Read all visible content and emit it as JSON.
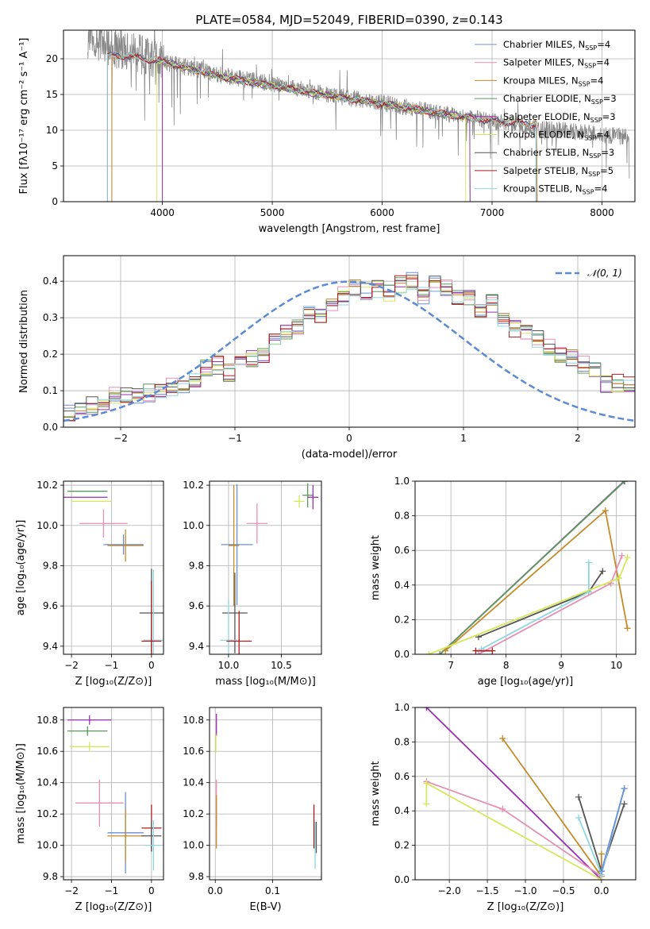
{
  "figure": {
    "title": "PLATE=0584, MJD=52049, FIBERID=0390, z=0.143"
  },
  "colors": {
    "chabrier_miles": "#6a8fd8",
    "salpeter_miles": "#e58fb4",
    "kroupa_miles": "#c58a2a",
    "chabrier_elodie": "#5a9a5a",
    "salpeter_elodie": "#9a2fb0",
    "kroupa_elodie": "#d4e85a",
    "chabrier_stelib": "#555555",
    "salpeter_stelib": "#b01c1c",
    "kroupa_stelib": "#8fd6e0",
    "data": "#888888",
    "normal": "#5b8bd6"
  },
  "chart_data": [
    {
      "id": "spectrum",
      "type": "line",
      "xlabel": "wavelength [Angstrom, rest frame]",
      "ylabel": "Flux [fλ10⁻¹⁷ erg cm⁻² s⁻¹ A⁻¹]",
      "xlim": [
        3100,
        8300
      ],
      "ylim": [
        0,
        24
      ],
      "xticks": [
        4000,
        5000,
        6000,
        7000,
        8000
      ],
      "yticks": [
        0,
        5,
        10,
        15,
        20
      ],
      "legend_position": "top-right",
      "legend": [
        {
          "key": "chabrier_miles",
          "label": "Chabrier MILES, N",
          "sub": "SSP",
          "suffix": "=4"
        },
        {
          "key": "salpeter_miles",
          "label": "Salpeter MILES, N",
          "sub": "SSP",
          "suffix": "=4"
        },
        {
          "key": "kroupa_miles",
          "label": "Kroupa MILES, N",
          "sub": "SSP",
          "suffix": "=4"
        },
        {
          "key": "chabrier_elodie",
          "label": "Chabrier ELODIE, N",
          "sub": "SSP",
          "suffix": "=3"
        },
        {
          "key": "salpeter_elodie",
          "label": "Salpeter ELODIE, N",
          "sub": "SSP",
          "suffix": "=3"
        },
        {
          "key": "kroupa_elodie",
          "label": "Kroupa ELODIE, N",
          "sub": "SSP",
          "suffix": "=4"
        },
        {
          "key": "chabrier_stelib",
          "label": "Chabrier STELIB, N",
          "sub": "SSP",
          "suffix": "=3"
        },
        {
          "key": "salpeter_stelib",
          "label": "Salpeter STELIB, N",
          "sub": "SSP",
          "suffix": "=5"
        },
        {
          "key": "kroupa_stelib",
          "label": "Kroupa STELIB, N",
          "sub": "SSP",
          "suffix": "=4"
        }
      ],
      "data_trend": [
        [
          3300,
          23.5
        ],
        [
          3500,
          22
        ],
        [
          3700,
          21
        ],
        [
          4000,
          19.6
        ],
        [
          4500,
          17.8
        ],
        [
          5000,
          16.5
        ],
        [
          5500,
          15
        ],
        [
          6000,
          13.8
        ],
        [
          6500,
          12.5
        ],
        [
          7000,
          11.2
        ],
        [
          7500,
          10.2
        ],
        [
          8000,
          9.4
        ],
        [
          8250,
          9.0
        ]
      ],
      "model_trend": [
        [
          3500,
          20.5
        ],
        [
          3700,
          20.3
        ],
        [
          4000,
          19.6
        ],
        [
          4500,
          17.6
        ],
        [
          5000,
          16.2
        ],
        [
          5500,
          14.9
        ],
        [
          6000,
          13.7
        ],
        [
          6500,
          12.4
        ],
        [
          7000,
          11.3
        ],
        [
          7400,
          10.8
        ]
      ],
      "model_ranges": {
        "chabrier_miles": [
          3540,
          7410
        ],
        "salpeter_miles": [
          3540,
          7410
        ],
        "kroupa_miles": [
          3540,
          7410
        ],
        "chabrier_elodie": [
          4000,
          6800
        ],
        "salpeter_elodie": [
          4000,
          6800
        ],
        "kroupa_elodie": [
          3950,
          6760
        ],
        "chabrier_stelib": [
          3500,
          7400
        ],
        "salpeter_stelib": [
          3500,
          7400
        ],
        "kroupa_stelib": [
          3500,
          7400
        ]
      }
    },
    {
      "id": "residuals",
      "type": "line",
      "xlabel": "(data-model)/error",
      "ylabel": "Normed distribution",
      "xlim": [
        -2.5,
        2.5
      ],
      "ylim": [
        0,
        0.47
      ],
      "xticks": [
        -2,
        -1,
        0,
        1,
        2
      ],
      "yticks": [
        0.0,
        0.1,
        0.2,
        0.3,
        0.4
      ],
      "legend_position": "top-right",
      "legend_label": "𝒩(0, 1)",
      "hist_x_start": -2.5,
      "hist_bin_width": 0.1,
      "hist_base": [
        0.042,
        0.042,
        0.06,
        0.072,
        0.085,
        0.086,
        0.09,
        0.094,
        0.1,
        0.11,
        0.118,
        0.13,
        0.16,
        0.17,
        0.15,
        0.17,
        0.19,
        0.2,
        0.25,
        0.26,
        0.27,
        0.32,
        0.3,
        0.33,
        0.36,
        0.38,
        0.37,
        0.38,
        0.37,
        0.39,
        0.4,
        0.36,
        0.39,
        0.38,
        0.36,
        0.35,
        0.32,
        0.34,
        0.3,
        0.27,
        0.26,
        0.24,
        0.22,
        0.2,
        0.19,
        0.17,
        0.16,
        0.12,
        0.12,
        0.12,
        0.1,
        0.09,
        0.08,
        0.08,
        0.06,
        0.06,
        0.05,
        0.04,
        0.03,
        0.04,
        0.03,
        0.02,
        0.01,
        0.02,
        0.01
      ],
      "normal_curve": {
        "mean": 0,
        "sigma": 1
      }
    },
    {
      "id": "age_vs_z",
      "type": "scatter",
      "xlabel": "Z [log₁₀(Z/Z⊙)]",
      "ylabel": "age  [log₁₀(age/yr)]",
      "xlim": [
        -2.2,
        0.3
      ],
      "ylim": [
        9.36,
        10.22
      ],
      "xticks": [
        -2,
        -1,
        0
      ],
      "yticks": [
        9.4,
        9.6,
        9.8,
        10.0,
        10.2
      ],
      "points": [
        {
          "key": "chabrier_elodie",
          "x": -1.6,
          "y": 10.17,
          "xerr": 0.5,
          "yerr": 0.0
        },
        {
          "key": "salpeter_elodie",
          "x": -1.7,
          "y": 10.14,
          "xerr": 0.6,
          "yerr": 0.0
        },
        {
          "key": "kroupa_elodie",
          "x": -1.5,
          "y": 10.12,
          "xerr": 0.5,
          "yerr": 0.0
        },
        {
          "key": "salpeter_miles",
          "x": -1.2,
          "y": 10.01,
          "xerr": 0.6,
          "yerr": 0.07
        },
        {
          "key": "chabrier_miles",
          "x": -0.7,
          "y": 9.905,
          "xerr": 0.5,
          "yerr": 0.05
        },
        {
          "key": "kroupa_miles",
          "x": -0.65,
          "y": 9.9,
          "xerr": 0.45,
          "yerr": 0.08
        },
        {
          "key": "chabrier_stelib",
          "x": 0.0,
          "y": 9.565,
          "xerr": 0.3,
          "yerr": 0.22
        },
        {
          "key": "kroupa_stelib",
          "x": 0.05,
          "y": 9.43,
          "xerr": 0.25,
          "yerr": 0.35
        },
        {
          "key": "salpeter_stelib",
          "x": 0.0,
          "y": 9.425,
          "xerr": 0.25,
          "yerr": 0.3
        }
      ]
    },
    {
      "id": "age_vs_mass",
      "type": "scatter",
      "xlabel": "mass [log₁₀(M/M⊙)]",
      "ylabel": "",
      "xlim": [
        9.82,
        10.88
      ],
      "ylim": [
        9.36,
        10.22
      ],
      "xticks": [
        10.0,
        10.5
      ],
      "yticks": [
        9.4,
        9.6,
        9.8,
        10.0,
        10.2
      ],
      "points": [
        {
          "key": "chabrier_elodie",
          "x": 10.75,
          "y": 10.15,
          "xerr": 0.05,
          "yerr": 0.06
        },
        {
          "key": "salpeter_elodie",
          "x": 10.8,
          "y": 10.14,
          "xerr": 0.05,
          "yerr": 0.06
        },
        {
          "key": "kroupa_elodie",
          "x": 10.67,
          "y": 10.12,
          "xerr": 0.05,
          "yerr": 0.03
        },
        {
          "key": "salpeter_miles",
          "x": 10.27,
          "y": 10.01,
          "xerr": 0.1,
          "yerr": 0.1
        },
        {
          "key": "chabrier_miles",
          "x": 10.08,
          "y": 9.905,
          "xerr": 0.15,
          "yerr": 0.3
        },
        {
          "key": "kroupa_miles",
          "x": 10.05,
          "y": 9.9,
          "xerr": 0.05,
          "yerr": 0.3
        },
        {
          "key": "chabrier_stelib",
          "x": 10.06,
          "y": 9.565,
          "xerr": 0.12,
          "yerr": 0.2
        },
        {
          "key": "kroupa_stelib",
          "x": 10.0,
          "y": 9.43,
          "xerr": 0.08,
          "yerr": 0.2
        },
        {
          "key": "salpeter_stelib",
          "x": 10.1,
          "y": 9.425,
          "xerr": 0.12,
          "yerr": 0.15
        }
      ]
    },
    {
      "id": "massweight_vs_age",
      "type": "line",
      "xlabel": "age  [log₁₀(age/yr)]",
      "ylabel": "mass weight",
      "xlim": [
        6.35,
        10.35
      ],
      "ylim": [
        0,
        1
      ],
      "xticks": [
        7,
        8,
        9,
        10
      ],
      "yticks": [
        0.0,
        0.2,
        0.4,
        0.6,
        0.8,
        1.0
      ],
      "series": [
        {
          "key": "salpeter_elodie",
          "x": [
            6.8,
            10.14
          ],
          "y": [
            0.0,
            1.0
          ]
        },
        {
          "key": "chabrier_elodie",
          "x": [
            6.8,
            10.15
          ],
          "y": [
            0.0,
            1.0
          ]
        },
        {
          "key": "kroupa_miles",
          "x": [
            6.9,
            9.8,
            10.2
          ],
          "y": [
            0.02,
            0.83,
            0.15
          ]
        },
        {
          "key": "chabrier_stelib",
          "x": [
            7.5,
            9.5,
            9.75
          ],
          "y": [
            0.1,
            0.36,
            0.48
          ]
        },
        {
          "key": "kroupa_stelib",
          "x": [
            7.55,
            9.5,
            9.5
          ],
          "y": [
            0.03,
            0.36,
            0.53
          ]
        },
        {
          "key": "salpeter_miles",
          "x": [
            7.5,
            9.9,
            10.1
          ],
          "y": [
            0.0,
            0.41,
            0.57
          ]
        },
        {
          "key": "kroupa_elodie",
          "x": [
            6.6,
            10.05,
            10.2
          ],
          "y": [
            0.0,
            0.44,
            0.56
          ]
        },
        {
          "key": "salpeter_stelib",
          "x": [
            7.45,
            7.75
          ],
          "y": [
            0.02,
            0.02
          ]
        }
      ]
    },
    {
      "id": "mass_vs_z",
      "type": "scatter",
      "xlabel": "Z [log₁₀(Z/Z⊙)]",
      "ylabel": "mass [log₁₀(M/M⊙)]",
      "xlim": [
        -2.2,
        0.3
      ],
      "ylim": [
        9.78,
        10.88
      ],
      "xticks": [
        -2,
        -1,
        0
      ],
      "yticks": [
        9.8,
        10.0,
        10.2,
        10.4,
        10.6,
        10.8
      ],
      "points": [
        {
          "key": "salpeter_elodie",
          "x": -1.55,
          "y": 10.8,
          "xerr": 0.55,
          "yerr": 0.03
        },
        {
          "key": "chabrier_elodie",
          "x": -1.6,
          "y": 10.73,
          "xerr": 0.5,
          "yerr": 0.03
        },
        {
          "key": "kroupa_elodie",
          "x": -1.55,
          "y": 10.63,
          "xerr": 0.5,
          "yerr": 0.03
        },
        {
          "key": "salpeter_miles",
          "x": -1.3,
          "y": 10.27,
          "xerr": 0.6,
          "yerr": 0.15
        },
        {
          "key": "chabrier_miles",
          "x": -0.65,
          "y": 10.08,
          "xerr": 0.45,
          "yerr": 0.26
        },
        {
          "key": "kroupa_miles",
          "x": -0.65,
          "y": 10.06,
          "xerr": 0.45,
          "yerr": 0.17
        },
        {
          "key": "salpeter_stelib",
          "x": 0.0,
          "y": 10.11,
          "xerr": 0.25,
          "yerr": 0.15
        },
        {
          "key": "chabrier_stelib",
          "x": 0.0,
          "y": 10.06,
          "xerr": 0.25,
          "yerr": 0.1
        },
        {
          "key": "kroupa_stelib",
          "x": 0.05,
          "y": 10.0,
          "xerr": 0.2,
          "yerr": 0.16
        }
      ]
    },
    {
      "id": "mass_vs_ebv",
      "type": "scatter",
      "xlabel": "E(B-V)",
      "ylabel": "",
      "xlim": [
        -0.01,
        0.185
      ],
      "ylim": [
        9.78,
        10.88
      ],
      "xticks": [
        0.0,
        0.1
      ],
      "xtick_labels": [
        "0.0",
        "0.1"
      ],
      "yticks": [
        9.8,
        10.0,
        10.2,
        10.4,
        10.6,
        10.8
      ],
      "points": [
        {
          "key": "salpeter_elodie",
          "x": 0.002,
          "y": 10.77,
          "xerr": 0,
          "yerr": 0.07
        },
        {
          "key": "kroupa_elodie",
          "x": 0.001,
          "y": 10.65,
          "xerr": 0,
          "yerr": 0.06
        },
        {
          "key": "salpeter_miles",
          "x": 0.002,
          "y": 10.27,
          "xerr": 0,
          "yerr": 0.15
        },
        {
          "key": "kroupa_miles",
          "x": 0.002,
          "y": 10.15,
          "xerr": 0,
          "yerr": 0.17
        },
        {
          "key": "salpeter_stelib",
          "x": 0.172,
          "y": 10.12,
          "xerr": 0,
          "yerr": 0.14
        },
        {
          "key": "chabrier_stelib",
          "x": 0.176,
          "y": 10.05,
          "xerr": 0,
          "yerr": 0.1
        },
        {
          "key": "kroupa_stelib",
          "x": 0.174,
          "y": 10.0,
          "xerr": 0,
          "yerr": 0.15
        }
      ]
    },
    {
      "id": "massweight_vs_z",
      "type": "line",
      "xlabel": "Z [log₁₀(Z/Z⊙)]",
      "ylabel": "mass weight",
      "xlim": [
        -2.45,
        0.45
      ],
      "ylim": [
        0,
        1
      ],
      "xticks": [
        -2.0,
        -1.5,
        -1.0,
        -0.5,
        0.0
      ],
      "xtick_labels": [
        "−2.0",
        "−1.5",
        "−1.0",
        "−0.5",
        "0.0"
      ],
      "yticks": [
        0.0,
        0.2,
        0.4,
        0.6,
        0.8,
        1.0
      ],
      "series": [
        {
          "key": "salpeter_elodie",
          "x": [
            -2.3,
            0.0
          ],
          "y": [
            1.0,
            0.0
          ]
        },
        {
          "key": "kroupa_miles",
          "x": [
            -1.3,
            0.0,
            0.0
          ],
          "y": [
            0.82,
            0.02,
            0.15
          ]
        },
        {
          "key": "salpeter_miles",
          "x": [
            -2.3,
            -1.3,
            0.0
          ],
          "y": [
            0.57,
            0.41,
            0.02
          ]
        },
        {
          "key": "kroupa_elodie",
          "x": [
            -2.3,
            -2.3,
            0.0
          ],
          "y": [
            0.44,
            0.56,
            0.0
          ]
        },
        {
          "key": "chabrier_stelib",
          "x": [
            -0.3,
            0.0,
            0.3
          ],
          "y": [
            0.48,
            0.05,
            0.44
          ]
        },
        {
          "key": "kroupa_stelib",
          "x": [
            -0.3,
            0.0,
            0.3
          ],
          "y": [
            0.36,
            0.03,
            0.53
          ]
        },
        {
          "key": "chabrier_miles",
          "x": [
            0.0,
            0.3
          ],
          "y": [
            0.05,
            0.53
          ]
        }
      ]
    }
  ]
}
